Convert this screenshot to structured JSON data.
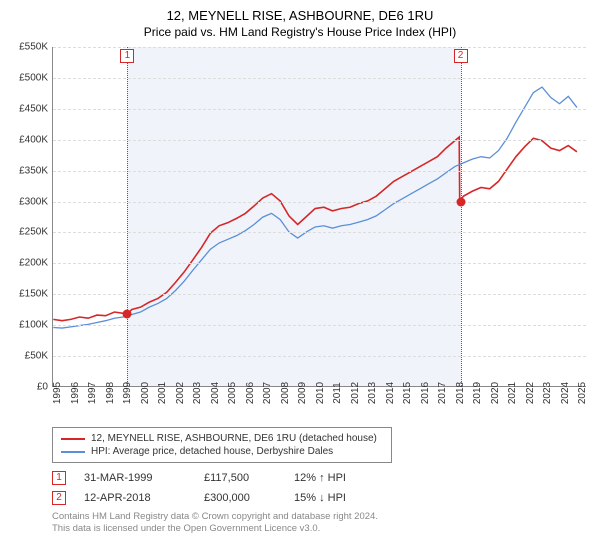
{
  "title": "12, MEYNELL RISE, ASHBOURNE, DE6 1RU",
  "subtitle": "Price paid vs. HM Land Registry's House Price Index (HPI)",
  "chart": {
    "type": "line",
    "background_color": "#ffffff",
    "shaded_color": "#eef3f9",
    "grid_color": "#dddddd",
    "axis_color": "#888888",
    "ylim": [
      0,
      550000
    ],
    "ytick_step": 50000,
    "ytick_labels": [
      "£0",
      "£50K",
      "£100K",
      "£150K",
      "£200K",
      "£250K",
      "£300K",
      "£350K",
      "£400K",
      "£450K",
      "£500K",
      "£550K"
    ],
    "x_years": [
      1995,
      1996,
      1997,
      1998,
      1999,
      2000,
      2001,
      2002,
      2003,
      2004,
      2005,
      2006,
      2007,
      2008,
      2009,
      2010,
      2011,
      2012,
      2013,
      2014,
      2015,
      2016,
      2017,
      2018,
      2019,
      2020,
      2021,
      2022,
      2023,
      2024,
      2025
    ],
    "xmin": 1995,
    "xmax": 2025.5,
    "shaded_from": 1999.25,
    "shaded_to": 2018.28,
    "label_fontsize": 10,
    "title_fontsize": 13,
    "series": [
      {
        "name": "12, MEYNELL RISE, ASHBOURNE, DE6 1RU (detached house)",
        "color": "#d62728",
        "width": 1.6,
        "data": [
          [
            1995,
            108000
          ],
          [
            1995.5,
            106000
          ],
          [
            1996,
            108000
          ],
          [
            1996.5,
            112000
          ],
          [
            1997,
            110000
          ],
          [
            1997.5,
            115000
          ],
          [
            1998,
            114000
          ],
          [
            1998.5,
            120000
          ],
          [
            1999,
            118000
          ],
          [
            1999.25,
            117500
          ],
          [
            1999.5,
            124000
          ],
          [
            2000,
            128000
          ],
          [
            2000.5,
            136000
          ],
          [
            2001,
            142000
          ],
          [
            2001.5,
            152000
          ],
          [
            2002,
            168000
          ],
          [
            2002.5,
            185000
          ],
          [
            2003,
            205000
          ],
          [
            2003.5,
            225000
          ],
          [
            2004,
            248000
          ],
          [
            2004.5,
            260000
          ],
          [
            2005,
            265000
          ],
          [
            2005.5,
            272000
          ],
          [
            2006,
            280000
          ],
          [
            2006.5,
            292000
          ],
          [
            2007,
            305000
          ],
          [
            2007.5,
            312000
          ],
          [
            2008,
            300000
          ],
          [
            2008.5,
            276000
          ],
          [
            2009,
            262000
          ],
          [
            2009.5,
            275000
          ],
          [
            2010,
            288000
          ],
          [
            2010.5,
            290000
          ],
          [
            2011,
            284000
          ],
          [
            2011.5,
            288000
          ],
          [
            2012,
            290000
          ],
          [
            2012.5,
            296000
          ],
          [
            2013,
            300000
          ],
          [
            2013.5,
            308000
          ],
          [
            2014,
            320000
          ],
          [
            2014.5,
            332000
          ],
          [
            2015,
            340000
          ],
          [
            2015.5,
            348000
          ],
          [
            2016,
            356000
          ],
          [
            2016.5,
            364000
          ],
          [
            2017,
            372000
          ],
          [
            2017.5,
            386000
          ],
          [
            2018,
            398000
          ],
          [
            2018.25,
            404000
          ],
          [
            2018.28,
            300000
          ],
          [
            2018.5,
            308000
          ],
          [
            2019,
            316000
          ],
          [
            2019.5,
            322000
          ],
          [
            2020,
            320000
          ],
          [
            2020.5,
            332000
          ],
          [
            2021,
            352000
          ],
          [
            2021.5,
            372000
          ],
          [
            2022,
            388000
          ],
          [
            2022.5,
            402000
          ],
          [
            2023,
            398000
          ],
          [
            2023.5,
            386000
          ],
          [
            2024,
            382000
          ],
          [
            2024.5,
            390000
          ],
          [
            2025,
            380000
          ]
        ]
      },
      {
        "name": "HPI: Average price, detached house, Derbyshire Dales",
        "color": "#5b8fd6",
        "width": 1.3,
        "data": [
          [
            1995,
            95000
          ],
          [
            1995.5,
            94000
          ],
          [
            1996,
            96000
          ],
          [
            1996.5,
            98000
          ],
          [
            1997,
            100000
          ],
          [
            1997.5,
            103000
          ],
          [
            1998,
            106000
          ],
          [
            1998.5,
            110000
          ],
          [
            1999,
            112000
          ],
          [
            1999.5,
            116000
          ],
          [
            2000,
            120000
          ],
          [
            2000.5,
            128000
          ],
          [
            2001,
            134000
          ],
          [
            2001.5,
            142000
          ],
          [
            2002,
            155000
          ],
          [
            2002.5,
            170000
          ],
          [
            2003,
            188000
          ],
          [
            2003.5,
            205000
          ],
          [
            2004,
            222000
          ],
          [
            2004.5,
            232000
          ],
          [
            2005,
            238000
          ],
          [
            2005.5,
            244000
          ],
          [
            2006,
            252000
          ],
          [
            2006.5,
            262000
          ],
          [
            2007,
            274000
          ],
          [
            2007.5,
            280000
          ],
          [
            2008,
            270000
          ],
          [
            2008.5,
            250000
          ],
          [
            2009,
            240000
          ],
          [
            2009.5,
            250000
          ],
          [
            2010,
            258000
          ],
          [
            2010.5,
            260000
          ],
          [
            2011,
            256000
          ],
          [
            2011.5,
            260000
          ],
          [
            2012,
            262000
          ],
          [
            2012.5,
            266000
          ],
          [
            2013,
            270000
          ],
          [
            2013.5,
            276000
          ],
          [
            2014,
            286000
          ],
          [
            2014.5,
            296000
          ],
          [
            2015,
            304000
          ],
          [
            2015.5,
            312000
          ],
          [
            2016,
            320000
          ],
          [
            2016.5,
            328000
          ],
          [
            2017,
            336000
          ],
          [
            2017.5,
            346000
          ],
          [
            2018,
            356000
          ],
          [
            2018.5,
            362000
          ],
          [
            2019,
            368000
          ],
          [
            2019.5,
            372000
          ],
          [
            2020,
            370000
          ],
          [
            2020.5,
            382000
          ],
          [
            2021,
            402000
          ],
          [
            2021.5,
            428000
          ],
          [
            2022,
            452000
          ],
          [
            2022.5,
            476000
          ],
          [
            2023,
            485000
          ],
          [
            2023.5,
            468000
          ],
          [
            2024,
            458000
          ],
          [
            2024.5,
            470000
          ],
          [
            2025,
            452000
          ]
        ]
      }
    ],
    "markers": [
      {
        "label": "1",
        "x": 1999.25,
        "y": 117500,
        "vline_color": "#d62728"
      },
      {
        "label": "2",
        "x": 2018.28,
        "y": 300000,
        "vline_color": "#d62728"
      }
    ]
  },
  "legend": {
    "items": [
      {
        "color": "#d62728",
        "label": "12, MEYNELL RISE, ASHBOURNE, DE6 1RU (detached house)"
      },
      {
        "color": "#5b8fd6",
        "label": "HPI: Average price, detached house, Derbyshire Dales"
      }
    ]
  },
  "sales": [
    {
      "marker": "1",
      "date": "31-MAR-1999",
      "price": "£117,500",
      "delta": "12% ↑ HPI"
    },
    {
      "marker": "2",
      "date": "12-APR-2018",
      "price": "£300,000",
      "delta": "15% ↓ HPI"
    }
  ],
  "footer_line1": "Contains HM Land Registry data © Crown copyright and database right 2024.",
  "footer_line2": "This data is licensed under the Open Government Licence v3.0."
}
